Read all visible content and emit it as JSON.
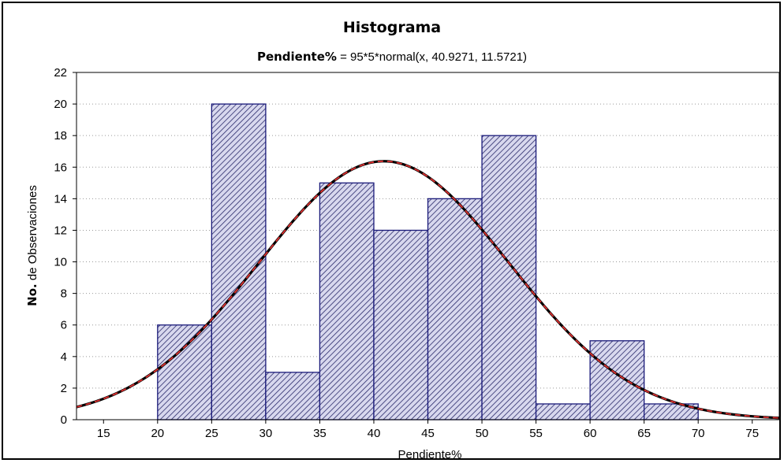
{
  "chart_data": {
    "type": "bar",
    "title": "Histograma",
    "subtitle_bold": "Pendiente%",
    "subtitle_rest": " = 95*5*normal(x, 40.9271, 11.5721)",
    "xlabel": "Pendiente%",
    "ylabel_bold": "No.",
    "ylabel_rest": " de Observaciones",
    "xlim": [
      12.5,
      77.5
    ],
    "ylim": [
      0,
      22
    ],
    "xticks": [
      15,
      20,
      25,
      30,
      35,
      40,
      45,
      50,
      55,
      60,
      65,
      70,
      75
    ],
    "yticks": [
      0,
      2,
      4,
      6,
      8,
      10,
      12,
      14,
      16,
      18,
      20,
      22
    ],
    "bins": [
      {
        "start": 20,
        "end": 25,
        "count": 6
      },
      {
        "start": 25,
        "end": 30,
        "count": 20
      },
      {
        "start": 30,
        "end": 35,
        "count": 3
      },
      {
        "start": 35,
        "end": 40,
        "count": 15
      },
      {
        "start": 40,
        "end": 45,
        "count": 12
      },
      {
        "start": 45,
        "end": 50,
        "count": 14
      },
      {
        "start": 50,
        "end": 55,
        "count": 18
      },
      {
        "start": 55,
        "end": 60,
        "count": 1
      },
      {
        "start": 60,
        "end": 65,
        "count": 5
      },
      {
        "start": 65,
        "end": 70,
        "count": 1
      }
    ],
    "normal_fit": {
      "n": 95,
      "bin_width": 5,
      "mean": 40.9271,
      "sd": 11.5721
    },
    "grid": "horizontal-dotted",
    "colors": {
      "bar_fill": "#d8d8ee",
      "bar_hatch": "#2a2a6a",
      "bar_edge": "#1a1a7a",
      "curve_base": "#000000",
      "curve_dash": "#e03030"
    }
  }
}
